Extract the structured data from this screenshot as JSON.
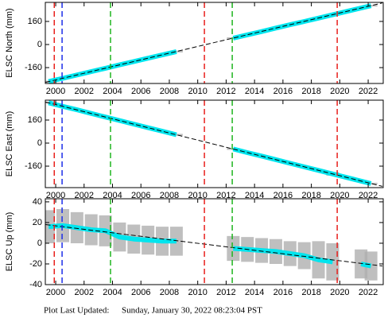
{
  "chart_data": [
    {
      "type": "line",
      "ylabel": "ELSC North (mm)",
      "x": [
        1999.5,
        2000.5,
        2001.5,
        2002.5,
        2003.5,
        2004.5,
        2005.5,
        2006.5,
        2007.5,
        2008.5,
        2009.5,
        2010.5,
        2011.5,
        2012.5,
        2013.5,
        2014.5,
        2015.5,
        2016.5,
        2017.5,
        2018.5,
        2019.5,
        2020.5,
        2021.5,
        2022.2
      ],
      "series": [
        {
          "color": "#00e5ee",
          "error_color": "#b0b0b0",
          "values": [
            -257,
            -234,
            -211,
            -188,
            -165,
            -141,
            -118,
            -95,
            -72,
            -49,
            null,
            null,
            null,
            44,
            67,
            90,
            114,
            137,
            160,
            183,
            206,
            230,
            253,
            269
          ],
          "errors": [
            6,
            6,
            6,
            6,
            6,
            6,
            6,
            6,
            6,
            6,
            null,
            null,
            null,
            6,
            6,
            6,
            6,
            6,
            6,
            6,
            6,
            6,
            6,
            6
          ]
        },
        {
          "color": "#000000",
          "dashed": true,
          "x": [
            1999.3,
            2023.0
          ],
          "values": [
            -262,
            288
          ]
        }
      ],
      "vlines": [
        {
          "x": 1999.9,
          "color": "#e8201c"
        },
        {
          "x": 2000.45,
          "color": "#1c2ee8"
        },
        {
          "x": 2003.86,
          "color": "#1fb51f"
        },
        {
          "x": 2010.47,
          "color": "#e8201c"
        },
        {
          "x": 2012.43,
          "color": "#1fb51f"
        },
        {
          "x": 2019.82,
          "color": "#e8201c"
        }
      ],
      "xlim": [
        1999.27,
        2023.06
      ],
      "xticks": [
        2000,
        2002,
        2004,
        2006,
        2008,
        2010,
        2012,
        2014,
        2016,
        2018,
        2020,
        2022
      ],
      "ylim": [
        -270,
        292
      ],
      "yticks": [
        -160,
        0,
        160
      ]
    },
    {
      "type": "line",
      "ylabel": "ELSC East (mm)",
      "x": [
        1999.5,
        2000.5,
        2001.5,
        2002.5,
        2003.5,
        2004.5,
        2005.5,
        2006.5,
        2007.5,
        2008.5,
        2009.5,
        2010.5,
        2011.5,
        2012.5,
        2013.5,
        2014.5,
        2015.5,
        2016.5,
        2017.5,
        2018.5,
        2019.5,
        2020.5,
        2021.5,
        2022.2
      ],
      "series": [
        {
          "color": "#00e5ee",
          "error_color": "#b0b0b0",
          "values": [
            280,
            255,
            231,
            206,
            181,
            157,
            132,
            107,
            83,
            58,
            null,
            null,
            null,
            -41,
            -66,
            -90,
            -115,
            -140,
            -165,
            -189,
            -214,
            -239,
            -264,
            -281
          ],
          "errors": [
            6,
            6,
            6,
            6,
            6,
            6,
            6,
            6,
            6,
            6,
            null,
            null,
            null,
            6,
            6,
            6,
            6,
            6,
            6,
            6,
            12,
            6,
            6,
            6
          ]
        },
        {
          "color": "#000000",
          "dashed": true,
          "x": [
            1999.3,
            2023.0
          ],
          "values": [
            285,
            -300
          ]
        }
      ],
      "vlines": [
        {
          "x": 1999.9,
          "color": "#e8201c"
        },
        {
          "x": 2000.45,
          "color": "#1c2ee8"
        },
        {
          "x": 2003.86,
          "color": "#1fb51f"
        },
        {
          "x": 2010.47,
          "color": "#e8201c"
        },
        {
          "x": 2012.43,
          "color": "#1fb51f"
        },
        {
          "x": 2019.82,
          "color": "#e8201c"
        }
      ],
      "xlim": [
        1999.27,
        2023.06
      ],
      "xticks": [
        2000,
        2002,
        2004,
        2006,
        2008,
        2010,
        2012,
        2014,
        2016,
        2018,
        2020,
        2022
      ],
      "ylim": [
        -309,
        298
      ],
      "yticks": [
        -160,
        0,
        160
      ]
    },
    {
      "type": "line",
      "ylabel": "ELSC Up (mm)",
      "x": [
        1999.5,
        2000.5,
        2001.5,
        2002.5,
        2003.5,
        2004.5,
        2005.5,
        2006.5,
        2007.5,
        2008.5,
        2009.5,
        2010.5,
        2011.5,
        2012.5,
        2013.5,
        2014.5,
        2015.5,
        2016.5,
        2017.5,
        2018.5,
        2019.5,
        2020.5,
        2021.5,
        2022.2
      ],
      "series": [
        {
          "color": "#00e5ee",
          "error_color": "#b0b0b0",
          "values": [
            16,
            17,
            15,
            13,
            12,
            6,
            4,
            3,
            2,
            2,
            null,
            null,
            null,
            -5,
            -6,
            -7,
            -8,
            -10,
            -12,
            -16,
            -18,
            null,
            -20,
            -22
          ],
          "errors": [
            16,
            16,
            15,
            15,
            15,
            14,
            14,
            14,
            14,
            14,
            null,
            null,
            null,
            12,
            12,
            12,
            12,
            12,
            13,
            18,
            18,
            null,
            14,
            14
          ]
        },
        {
          "color": "#000000",
          "dashed": true,
          "x": [
            1999.3,
            2023.0
          ],
          "values": [
            18,
            -22
          ]
        }
      ],
      "vlines": [
        {
          "x": 1999.9,
          "color": "#e8201c"
        },
        {
          "x": 2000.45,
          "color": "#1c2ee8"
        },
        {
          "x": 2003.86,
          "color": "#1fb51f"
        },
        {
          "x": 2010.47,
          "color": "#e8201c"
        },
        {
          "x": 2012.43,
          "color": "#1fb51f"
        },
        {
          "x": 2019.82,
          "color": "#e8201c"
        }
      ],
      "xlim": [
        1999.27,
        2023.06
      ],
      "xticks": [
        2000,
        2002,
        2004,
        2006,
        2008,
        2010,
        2012,
        2014,
        2016,
        2018,
        2020,
        2022
      ],
      "ylim": [
        -40,
        43
      ],
      "yticks": [
        -40,
        -20,
        0,
        20,
        40
      ]
    }
  ],
  "footer": {
    "label": "Plot Last Updated:",
    "timestamp": "Sunday, January 30, 2022 08:23:04 PST"
  }
}
